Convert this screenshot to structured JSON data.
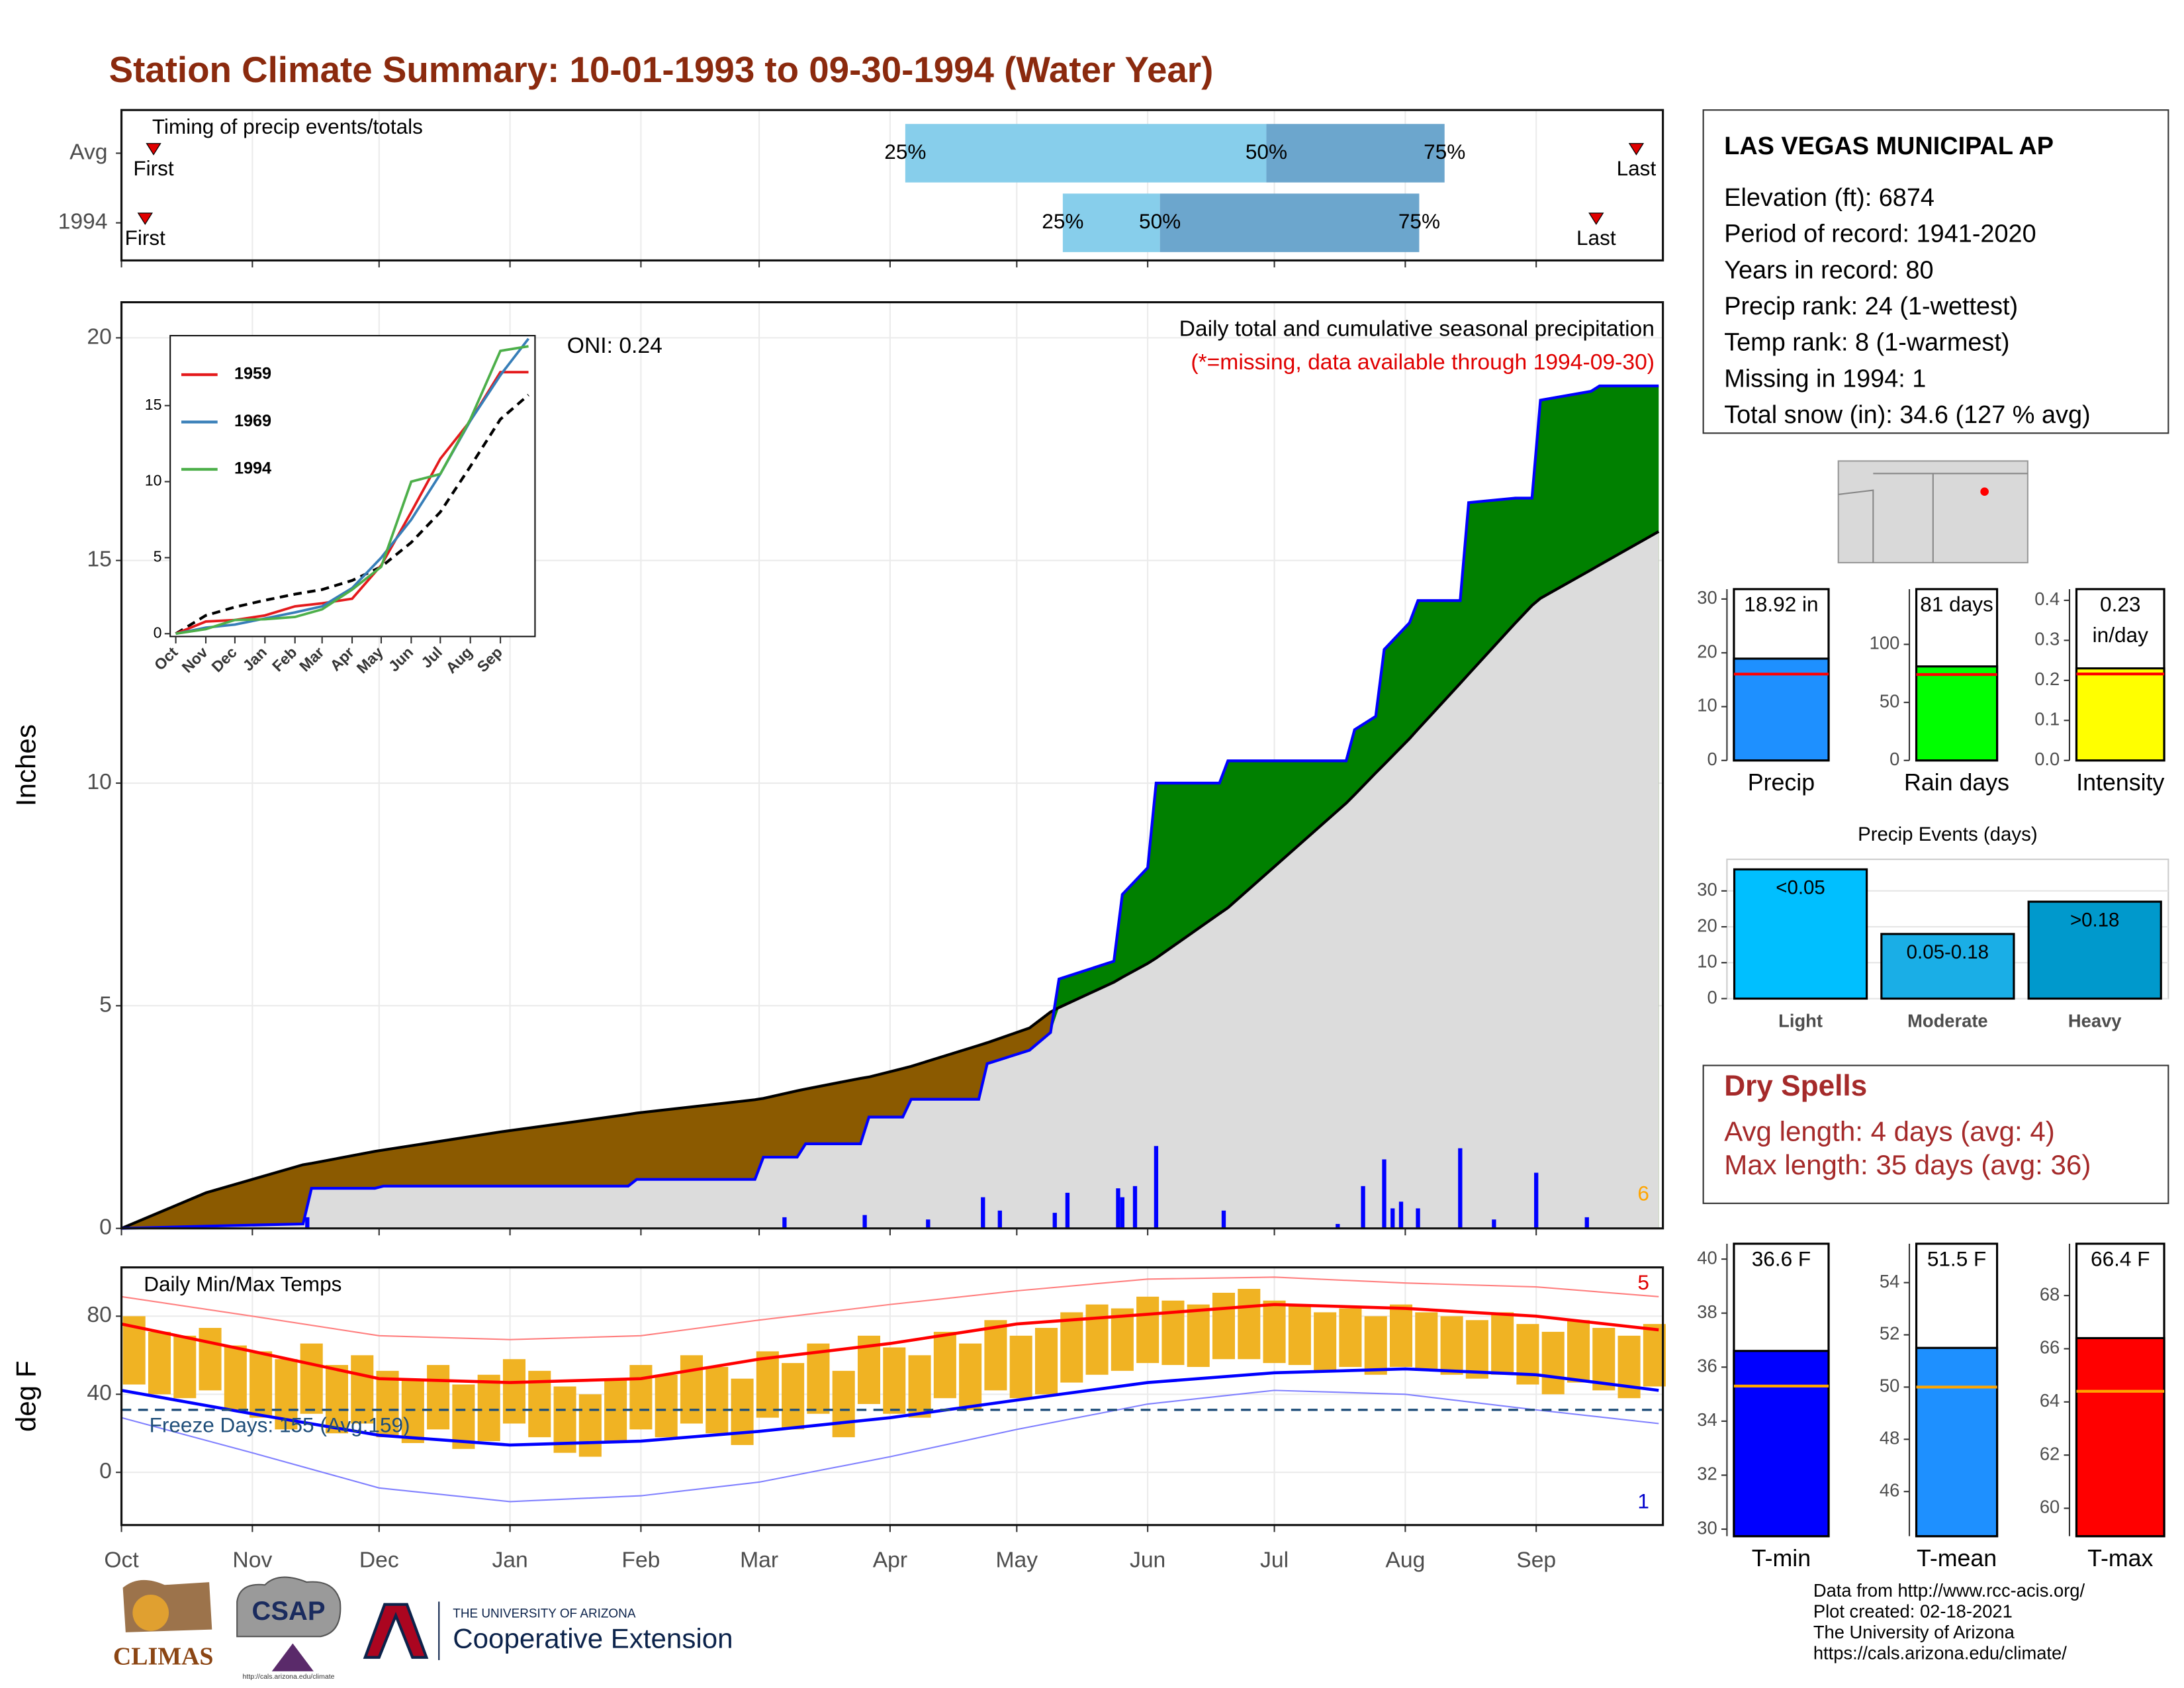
{
  "title": "Station Climate Summary: 10-01-1993 to 09-30-1994 (Water Year)",
  "chart_data": [
    {
      "type": "timing",
      "title": "Timing of precip events/totals",
      "xlim": [
        0,
        365
      ],
      "xticks": [
        0,
        31,
        61,
        92,
        123,
        151,
        182,
        212,
        243,
        273,
        304,
        335
      ],
      "rows": [
        {
          "name": "Avg",
          "first": 7.6,
          "p25": 185.6,
          "p50": 271.1,
          "p75": 313.3,
          "last": 358.7
        },
        {
          "name": "1994",
          "first": 5.6,
          "p25": 222.9,
          "p50": 245.9,
          "p75": 307.3,
          "last": 349.2
        }
      ],
      "labels": {
        "first": "First",
        "last": "Last",
        "p25": "25%",
        "p50": "50%",
        "p75": "75%"
      },
      "colors": {
        "early": "#87ceeb",
        "late": "#6ca6cd",
        "marker": "#e00000"
      }
    },
    {
      "type": "cumulative",
      "title": "Daily total and cumulative seasonal precipitation",
      "subtitle": "(*=missing, data available through 1994-09-30)",
      "annotation": "ONI: 0.24",
      "corner_note": "6",
      "ylabel": "Inches",
      "xlim": [
        0,
        365
      ],
      "ylim": [
        0,
        20.8
      ],
      "xticks": [
        0,
        31,
        61,
        92,
        123,
        151,
        182,
        212,
        243,
        273,
        304,
        335
      ],
      "yticks": [
        0,
        5,
        10,
        15,
        20
      ],
      "grid": true,
      "x": [
        0,
        20,
        43,
        45,
        60,
        62,
        90,
        120,
        122,
        150,
        152,
        160,
        162,
        175,
        177,
        185,
        187,
        203,
        205,
        215,
        220,
        222,
        235,
        237,
        243,
        245,
        260,
        262,
        290,
        292,
        297,
        299,
        305,
        307,
        317,
        319,
        330,
        334,
        336,
        348,
        350,
        364
      ],
      "observed": {
        "color": "#0000ff",
        "values": [
          0,
          0.05,
          0.1,
          0.9,
          0.9,
          0.95,
          0.95,
          0.95,
          1.1,
          1.1,
          1.6,
          1.6,
          1.9,
          1.9,
          2.5,
          2.5,
          2.9,
          2.9,
          3.7,
          4.0,
          4.4,
          5.6,
          6.0,
          7.5,
          8.1,
          10.0,
          10.0,
          10.5,
          10.5,
          11.2,
          11.5,
          13.0,
          13.6,
          14.1,
          14.1,
          16.3,
          16.4,
          16.4,
          18.6,
          18.8,
          18.92,
          18.92
        ]
      },
      "average": {
        "color": "#000000",
        "values": [
          0,
          0.8,
          1.43,
          1.46,
          1.73,
          1.76,
          2.17,
          2.56,
          2.59,
          2.89,
          2.92,
          3.09,
          3.13,
          3.37,
          3.4,
          3.59,
          3.64,
          4.11,
          4.17,
          4.5,
          4.86,
          4.96,
          5.53,
          5.64,
          5.95,
          6.07,
          7.07,
          7.2,
          9.55,
          9.74,
          10.23,
          10.42,
          11.0,
          11.21,
          12.24,
          12.45,
          13.59,
          13.99,
          14.15,
          14.79,
          14.9,
          15.65
        ]
      },
      "fill_colors": {
        "above": "#008000",
        "below": "#8b5a00",
        "base": "#dcdcdc"
      },
      "daily": {
        "color": "#0000ff",
        "x": [
          44,
          157,
          176,
          191,
          204,
          208,
          221,
          224,
          236,
          237,
          240,
          245,
          261,
          288,
          294,
          299,
          301,
          303,
          307,
          317,
          325,
          335,
          347
        ],
        "values": [
          0.25,
          0.25,
          0.3,
          0.2,
          0.7,
          0.4,
          0.35,
          0.8,
          0.9,
          0.7,
          0.95,
          1.85,
          0.4,
          0.1,
          0.95,
          1.55,
          0.45,
          0.6,
          0.45,
          1.8,
          0.2,
          1.25,
          0.25
        ]
      }
    },
    {
      "type": "inset",
      "xlim": [
        0,
        365
      ],
      "ylim": [
        0,
        19.6
      ],
      "xticks": [
        {
          "value": 0,
          "label": "Oct"
        },
        {
          "value": 31,
          "label": "Nov"
        },
        {
          "value": 61,
          "label": "Dec"
        },
        {
          "value": 92,
          "label": "Jan"
        },
        {
          "value": 123,
          "label": "Feb"
        },
        {
          "value": 151,
          "label": "Mar"
        },
        {
          "value": 182,
          "label": "Apr"
        },
        {
          "value": 212,
          "label": "May"
        },
        {
          "value": 243,
          "label": "Jun"
        },
        {
          "value": 273,
          "label": "Jul"
        },
        {
          "value": 304,
          "label": "Aug"
        },
        {
          "value": 335,
          "label": "Sep"
        }
      ],
      "yticks": [
        0,
        5,
        10,
        15
      ],
      "x": [
        0,
        31,
        61,
        92,
        123,
        151,
        182,
        212,
        243,
        273,
        304,
        335,
        364
      ],
      "series": [
        {
          "name": "1959",
          "color": "#e41a1c",
          "values": [
            0,
            0.8,
            0.9,
            1.2,
            1.8,
            2.0,
            2.3,
            4.5,
            8.0,
            11.5,
            14.0,
            17.2,
            17.2
          ]
        },
        {
          "name": "1969",
          "color": "#377eb8",
          "values": [
            0,
            0.4,
            0.6,
            1.0,
            1.4,
            1.8,
            3.0,
            5.0,
            7.5,
            10.5,
            14.0,
            17.0,
            19.4
          ]
        },
        {
          "name": "1994",
          "color": "#4daf4a",
          "values": [
            0,
            0.3,
            0.9,
            0.95,
            1.1,
            1.6,
            2.9,
            4.4,
            10.0,
            10.5,
            14.1,
            18.6,
            18.9
          ]
        }
      ],
      "average": {
        "color": "#000000",
        "values": [
          0,
          1.2,
          1.75,
          2.2,
          2.6,
          2.9,
          3.5,
          4.4,
          6.0,
          8.0,
          11.0,
          14.1,
          15.7
        ]
      }
    },
    {
      "type": "temperature",
      "title": "Daily Min/Max Temps",
      "annotation": "Freeze Days: 155 (Avg:159)",
      "ylabel": "deg F",
      "high_note": "5",
      "low_note": "1",
      "xlim": [
        0,
        365
      ],
      "ylim": [
        -27,
        105
      ],
      "xticks": [
        {
          "value": 0,
          "label": "Oct"
        },
        {
          "value": 31,
          "label": "Nov"
        },
        {
          "value": 61,
          "label": "Dec"
        },
        {
          "value": 92,
          "label": "Jan"
        },
        {
          "value": 123,
          "label": "Feb"
        },
        {
          "value": 151,
          "label": "Mar"
        },
        {
          "value": 182,
          "label": "Apr"
        },
        {
          "value": 212,
          "label": "May"
        },
        {
          "value": 243,
          "label": "Jun"
        },
        {
          "value": 273,
          "label": "Jul"
        },
        {
          "value": 304,
          "label": "Aug"
        },
        {
          "value": 335,
          "label": "Sep"
        }
      ],
      "yticks": [
        0,
        40,
        80
      ],
      "freeze_line": 32,
      "daily": {
        "color": "#f0b323",
        "x": [
          0,
          6,
          12,
          18,
          24,
          30,
          36,
          42,
          48,
          54,
          60,
          66,
          72,
          78,
          84,
          90,
          96,
          102,
          108,
          114,
          120,
          126,
          132,
          138,
          144,
          150,
          156,
          162,
          168,
          174,
          180,
          186,
          192,
          198,
          204,
          210,
          216,
          222,
          228,
          234,
          240,
          246,
          252,
          258,
          264,
          270,
          276,
          282,
          288,
          294,
          300,
          306,
          312,
          318,
          324,
          330,
          336,
          342,
          348,
          354,
          360
        ],
        "max": [
          80,
          72,
          70,
          74,
          65,
          62,
          58,
          66,
          55,
          60,
          52,
          48,
          55,
          45,
          50,
          58,
          52,
          44,
          40,
          48,
          55,
          50,
          60,
          54,
          48,
          62,
          56,
          66,
          52,
          70,
          64,
          60,
          72,
          66,
          78,
          70,
          74,
          82,
          86,
          84,
          90,
          88,
          86,
          92,
          94,
          88,
          86,
          82,
          84,
          80,
          86,
          82,
          80,
          78,
          82,
          76,
          72,
          78,
          74,
          70,
          76
        ],
        "min": [
          45,
          40,
          38,
          42,
          32,
          28,
          22,
          30,
          20,
          25,
          18,
          15,
          22,
          12,
          16,
          25,
          18,
          10,
          8,
          15,
          22,
          18,
          25,
          20,
          14,
          28,
          22,
          30,
          18,
          35,
          30,
          28,
          38,
          32,
          42,
          38,
          40,
          46,
          50,
          52,
          56,
          55,
          54,
          58,
          58,
          56,
          55,
          52,
          54,
          50,
          54,
          52,
          50,
          48,
          50,
          45,
          40,
          46,
          42,
          38,
          44
        ]
      },
      "curve_x": [
        0,
        31,
        61,
        92,
        123,
        151,
        182,
        212,
        243,
        273,
        304,
        335,
        364
      ],
      "normals": {
        "max": {
          "color": "#ff0000",
          "values": [
            76,
            62,
            48,
            46,
            48,
            58,
            66,
            76,
            81,
            86,
            84,
            80,
            73
          ]
        },
        "min": {
          "color": "#0000ff",
          "values": [
            42,
            30,
            19,
            14,
            16,
            21,
            28,
            37,
            46,
            51,
            53,
            50,
            42
          ]
        }
      },
      "records": {
        "max": {
          "color": "#ff8080",
          "values": [
            90,
            80,
            70,
            68,
            70,
            78,
            86,
            93,
            99,
            100,
            97,
            95,
            90
          ]
        },
        "min": {
          "color": "#8080ff",
          "values": [
            28,
            10,
            -8,
            -15,
            -12,
            -5,
            8,
            22,
            35,
            42,
            40,
            32,
            25
          ]
        }
      },
      "freeze_color": "#1f4e79"
    },
    {
      "type": "summary_bar",
      "xlabel": "Precip",
      "values": [
        18.92
      ],
      "value_labels": [
        "18.92 in"
      ],
      "normal": 16.05,
      "color": "#1e90ff",
      "normal_color": "#ff0000",
      "ylim": [
        0,
        31.84
      ],
      "yticks": [
        0,
        10,
        20,
        30
      ]
    },
    {
      "type": "summary_bar",
      "xlabel": "Rain days",
      "values": [
        81
      ],
      "value_labels": [
        "81 days"
      ],
      "normal": 74,
      "color": "#00ff00",
      "normal_color": "#ff0000",
      "ylim": [
        0,
        147.6
      ],
      "yticks": [
        0,
        50,
        100
      ]
    },
    {
      "type": "summary_bar",
      "xlabel": "Intensity",
      "values": [
        0.23
      ],
      "value_labels": [
        "0.23 in/day"
      ],
      "normal": 0.216,
      "color": "#ffff00",
      "normal_color": "#ff0000",
      "ylim": [
        0,
        0.428
      ],
      "yticks": [
        {
          "value": 0,
          "label": "0.0"
        },
        {
          "value": 0.1,
          "label": "0.1"
        },
        {
          "value": 0.2,
          "label": "0.2"
        },
        {
          "value": 0.3,
          "label": "0.3"
        },
        {
          "value": 0.4,
          "label": "0.4"
        }
      ]
    },
    {
      "type": "bar",
      "title": "Precip Events (days)",
      "categories": [
        "Light",
        "Moderate",
        "Heavy"
      ],
      "classes": [
        "<0.05",
        "0.05-0.18",
        ">0.18"
      ],
      "values": [
        36,
        18,
        27
      ],
      "colors": [
        "#00bfff",
        "#1aaee6",
        "#0099cc"
      ],
      "ylim": [
        0,
        38.8
      ],
      "yticks": [
        0,
        10,
        20,
        30
      ]
    },
    {
      "type": "summary_bar",
      "xlabel": "T-min",
      "values": [
        36.6
      ],
      "value_labels": [
        "36.6 F"
      ],
      "normal": 35.3,
      "color": "#0000ff",
      "normal_color": "#ffa500",
      "ylim": [
        29.74,
        40.57
      ],
      "yticks": [
        30,
        32,
        34,
        36,
        38,
        40
      ]
    },
    {
      "type": "summary_bar",
      "xlabel": "T-mean",
      "values": [
        51.5
      ],
      "value_labels": [
        "51.5 F"
      ],
      "normal": 50.0,
      "color": "#1e90ff",
      "normal_color": "#ffa500",
      "ylim": [
        44.29,
        55.49
      ],
      "yticks": [
        46,
        48,
        50,
        52,
        54
      ]
    },
    {
      "type": "summary_bar",
      "xlabel": "T-max",
      "values": [
        66.4
      ],
      "value_labels": [
        "66.4 F"
      ],
      "normal": 64.4,
      "color": "#ff0000",
      "normal_color": "#ffa500",
      "ylim": [
        58.95,
        69.95
      ],
      "yticks": [
        60,
        62,
        64,
        66,
        68
      ]
    }
  ],
  "info": {
    "station": "LAS VEGAS MUNICIPAL AP",
    "lines": [
      "Elevation (ft): 6874",
      "Period of record: 1941-2020",
      "Years in record: 80",
      "Precip rank: 24 (1-wettest)",
      "Temp rank: 8 (1-warmest)",
      "Missing in 1994: 1",
      "Total snow (in): 34.6 (127 % avg)"
    ]
  },
  "dry_spells": {
    "title": "Dry Spells",
    "lines": [
      "Avg length: 4 days (avg: 4)",
      "Max length: 35 days (avg: 36)"
    ]
  },
  "footer": {
    "climas": "CLIMAS",
    "csap": "CSAP",
    "csap_url": "http://cals.arizona.edu/climate",
    "ua": "THE UNIVERSITY OF ARIZONA",
    "extension": "Cooperative Extension",
    "credits": [
      "Data from http://www.rcc-acis.org/",
      "Plot created: 02-18-2021",
      "The University of Arizona",
      "https://cals.arizona.edu/climate/"
    ]
  }
}
